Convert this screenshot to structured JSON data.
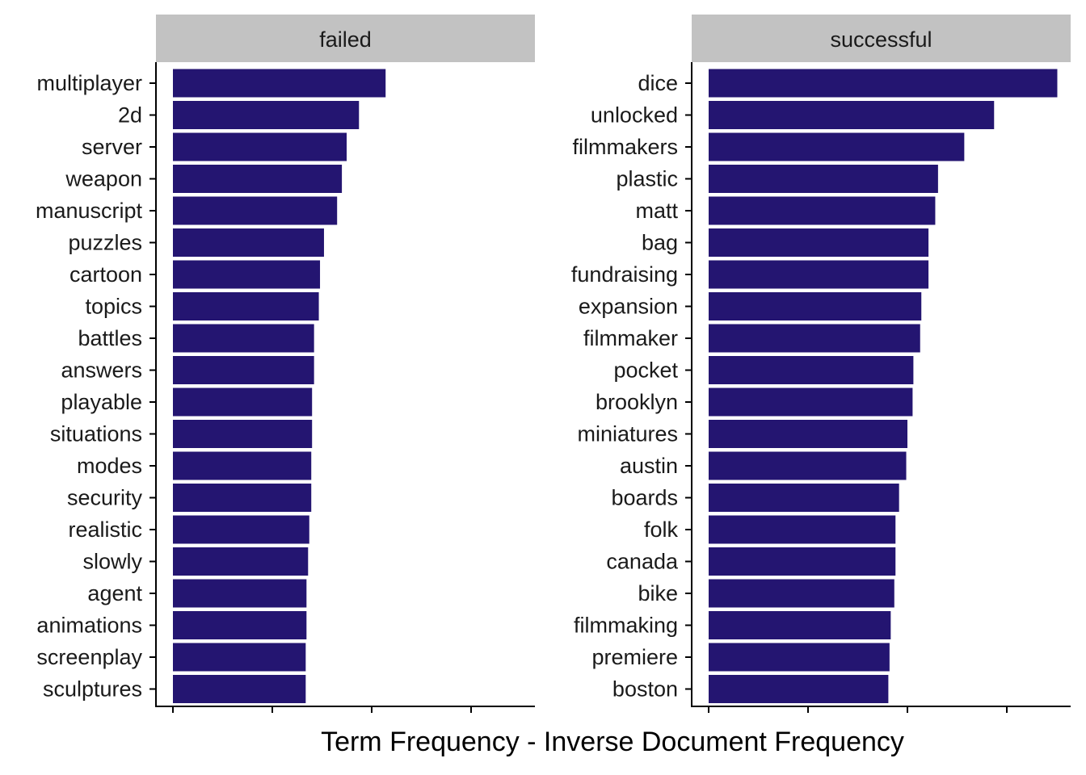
{
  "chart_data": {
    "type": "bar",
    "orientation": "horizontal",
    "xlabel": "Term Frequency - Inverse Document Frequency",
    "ylabel": "",
    "xlim": [
      0,
      1.0
    ],
    "x_ticks": [
      0,
      0.25,
      0.5,
      0.75
    ],
    "x_tick_labels_visible": false,
    "grid": false,
    "bar_color": "#241571",
    "strip_color": "#c2c2c2",
    "panels": [
      {
        "title": "failed",
        "categories": [
          "multiplayer",
          "2d",
          "server",
          "weapon",
          "manuscript",
          "puzzles",
          "cartoon",
          "topics",
          "battles",
          "answers",
          "playable",
          "situations",
          "modes",
          "security",
          "realistic",
          "slowly",
          "agent",
          "animations",
          "screenplay",
          "sculptures"
        ],
        "values": [
          0.535,
          0.468,
          0.437,
          0.425,
          0.413,
          0.38,
          0.37,
          0.367,
          0.355,
          0.355,
          0.35,
          0.35,
          0.348,
          0.348,
          0.343,
          0.34,
          0.336,
          0.336,
          0.334,
          0.334
        ]
      },
      {
        "title": "successful",
        "categories": [
          "dice",
          "unlocked",
          "filmmakers",
          "plastic",
          "matt",
          "bag",
          "fundraising",
          "expansion",
          "filmmaker",
          "pocket",
          "brooklyn",
          "miniatures",
          "austin",
          "boards",
          "folk",
          "canada",
          "bike",
          "filmmaking",
          "premiere",
          "boston"
        ],
        "values": [
          0.877,
          0.718,
          0.643,
          0.577,
          0.57,
          0.553,
          0.553,
          0.535,
          0.532,
          0.515,
          0.513,
          0.5,
          0.497,
          0.479,
          0.47,
          0.47,
          0.467,
          0.458,
          0.455,
          0.452
        ]
      }
    ]
  }
}
